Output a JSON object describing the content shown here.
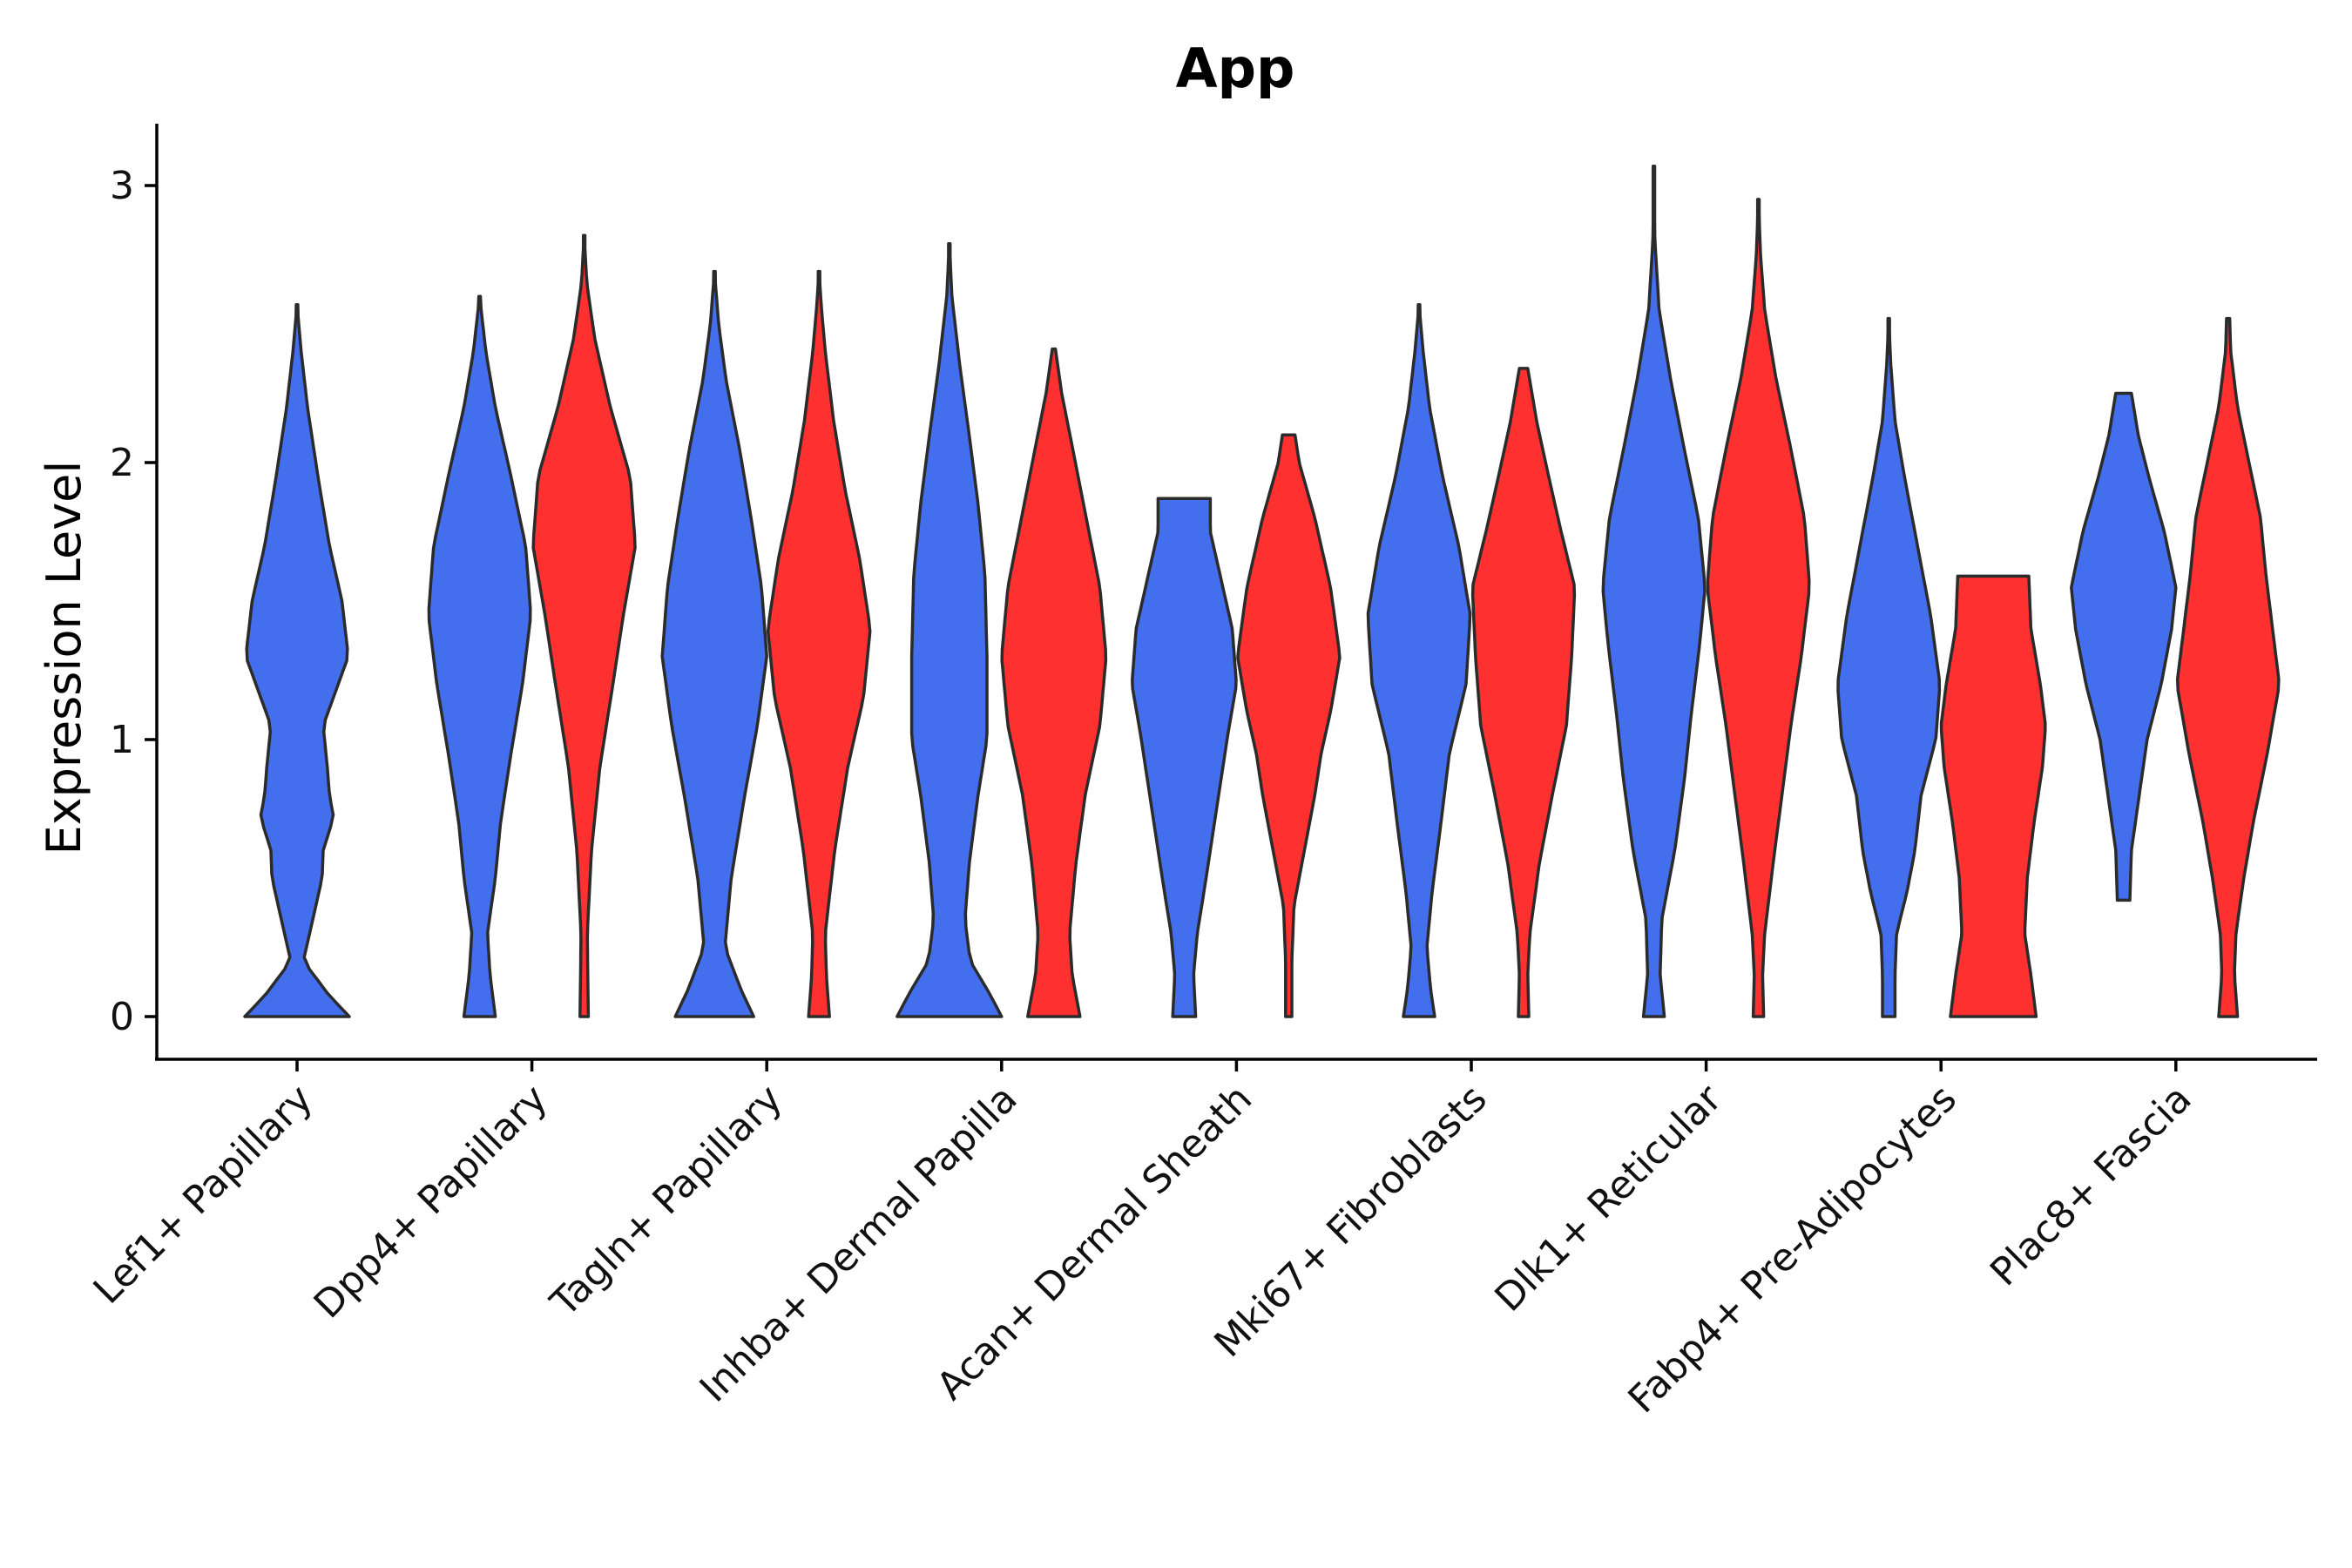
{
  "chart_data": {
    "type": "violin",
    "title": "App",
    "xlabel": "",
    "ylabel": "Expression Level",
    "ylim": [
      -0.15,
      3.2
    ],
    "yticks": [
      0,
      1,
      2,
      3
    ],
    "grid": false,
    "legend": "none",
    "colors": {
      "left": "#436EEE",
      "right": "#FF3030"
    },
    "categories": [
      "Lef1+ Papillary",
      "Dpp4+ Papillary",
      "Tagln+ Papillary",
      "Inhba+ Dermal Papilla",
      "Acan+ Dermal Sheath",
      "Mki67+ Fibroblasts",
      "Dlk1+ Reticular",
      "Fabp4+ Pre-Adipocytes",
      "Plac8+ Fascia"
    ],
    "violins": [
      {
        "category": 0,
        "color": "left",
        "ymin": 0,
        "ymax": 2.57,
        "profile": [
          [
            0,
            1.0
          ],
          [
            0.08,
            0.6
          ],
          [
            0.2,
            0.12
          ],
          [
            0.35,
            0.3
          ],
          [
            0.5,
            0.48
          ],
          [
            0.6,
            0.5
          ],
          [
            0.72,
            0.7
          ],
          [
            0.8,
            0.62
          ],
          [
            0.9,
            0.58
          ],
          [
            1.05,
            0.5
          ],
          [
            1.3,
            0.98
          ],
          [
            1.5,
            0.86
          ],
          [
            1.7,
            0.62
          ],
          [
            1.95,
            0.4
          ],
          [
            2.2,
            0.2
          ],
          [
            2.4,
            0.08
          ],
          [
            2.57,
            0.0
          ]
        ]
      },
      {
        "category": 1,
        "color": "left",
        "ymin": 0,
        "ymax": 2.6,
        "profile": [
          [
            0,
            0.3
          ],
          [
            0.15,
            0.2
          ],
          [
            0.3,
            0.15
          ],
          [
            0.5,
            0.3
          ],
          [
            0.7,
            0.4
          ],
          [
            0.95,
            0.6
          ],
          [
            1.2,
            0.82
          ],
          [
            1.45,
            0.98
          ],
          [
            1.7,
            0.88
          ],
          [
            1.95,
            0.6
          ],
          [
            2.2,
            0.3
          ],
          [
            2.4,
            0.12
          ],
          [
            2.6,
            0.0
          ]
        ]
      },
      {
        "category": 1,
        "color": "right",
        "ymin": 0,
        "ymax": 2.82,
        "profile": [
          [
            0,
            0.08
          ],
          [
            0.3,
            0.06
          ],
          [
            0.6,
            0.14
          ],
          [
            0.9,
            0.3
          ],
          [
            1.2,
            0.55
          ],
          [
            1.45,
            0.75
          ],
          [
            1.7,
            0.98
          ],
          [
            1.95,
            0.88
          ],
          [
            2.2,
            0.5
          ],
          [
            2.45,
            0.2
          ],
          [
            2.65,
            0.05
          ],
          [
            2.82,
            0.0
          ]
        ]
      },
      {
        "category": 2,
        "color": "left",
        "ymin": 0,
        "ymax": 2.69,
        "profile": [
          [
            0,
            0.75
          ],
          [
            0.1,
            0.5
          ],
          [
            0.25,
            0.2
          ],
          [
            0.5,
            0.32
          ],
          [
            0.8,
            0.58
          ],
          [
            1.05,
            0.82
          ],
          [
            1.3,
            1.0
          ],
          [
            1.55,
            0.9
          ],
          [
            1.8,
            0.7
          ],
          [
            2.05,
            0.48
          ],
          [
            2.3,
            0.22
          ],
          [
            2.5,
            0.08
          ],
          [
            2.69,
            0.0
          ]
        ]
      },
      {
        "category": 2,
        "color": "right",
        "ymin": 0,
        "ymax": 2.69,
        "profile": [
          [
            0,
            0.2
          ],
          [
            0.15,
            0.14
          ],
          [
            0.3,
            0.12
          ],
          [
            0.6,
            0.3
          ],
          [
            0.9,
            0.55
          ],
          [
            1.15,
            0.85
          ],
          [
            1.4,
            0.98
          ],
          [
            1.65,
            0.78
          ],
          [
            1.9,
            0.5
          ],
          [
            2.15,
            0.28
          ],
          [
            2.4,
            0.12
          ],
          [
            2.55,
            0.05
          ],
          [
            2.69,
            0.0
          ]
        ]
      },
      {
        "category": 3,
        "color": "left",
        "ymin": 0,
        "ymax": 2.79,
        "profile": [
          [
            0,
            1.0
          ],
          [
            0.08,
            0.78
          ],
          [
            0.2,
            0.4
          ],
          [
            0.35,
            0.3
          ],
          [
            0.55,
            0.38
          ],
          [
            0.8,
            0.55
          ],
          [
            1.0,
            0.72
          ],
          [
            1.3,
            0.72
          ],
          [
            1.6,
            0.68
          ],
          [
            1.85,
            0.55
          ],
          [
            2.1,
            0.38
          ],
          [
            2.35,
            0.2
          ],
          [
            2.6,
            0.05
          ],
          [
            2.79,
            0.0
          ]
        ]
      },
      {
        "category": 3,
        "color": "right",
        "ymin": 0,
        "ymax": 2.41,
        "profile": [
          [
            0,
            0.5
          ],
          [
            0.15,
            0.35
          ],
          [
            0.3,
            0.3
          ],
          [
            0.55,
            0.42
          ],
          [
            0.8,
            0.6
          ],
          [
            1.05,
            0.88
          ],
          [
            1.3,
            1.0
          ],
          [
            1.55,
            0.88
          ],
          [
            1.8,
            0.62
          ],
          [
            2.05,
            0.36
          ],
          [
            2.25,
            0.15
          ],
          [
            2.41,
            0.03
          ]
        ]
      },
      {
        "category": 4,
        "color": "left",
        "ymin": 0,
        "ymax": 1.87,
        "profile": [
          [
            0,
            0.22
          ],
          [
            0.15,
            0.18
          ],
          [
            0.3,
            0.25
          ],
          [
            0.5,
            0.42
          ],
          [
            0.75,
            0.62
          ],
          [
            1.0,
            0.82
          ],
          [
            1.2,
            1.0
          ],
          [
            1.4,
            0.92
          ],
          [
            1.6,
            0.68
          ],
          [
            1.75,
            0.5
          ],
          [
            1.87,
            0.5
          ]
        ]
      },
      {
        "category": 4,
        "color": "right",
        "ymin": 0,
        "ymax": 2.1,
        "profile": [
          [
            0,
            0.06
          ],
          [
            0.2,
            0.06
          ],
          [
            0.4,
            0.1
          ],
          [
            0.6,
            0.3
          ],
          [
            0.8,
            0.5
          ],
          [
            0.95,
            0.62
          ],
          [
            1.1,
            0.8
          ],
          [
            1.3,
            0.98
          ],
          [
            1.55,
            0.8
          ],
          [
            1.8,
            0.5
          ],
          [
            2.0,
            0.2
          ],
          [
            2.1,
            0.12
          ]
        ]
      },
      {
        "category": 5,
        "color": "left",
        "ymin": 0,
        "ymax": 2.57,
        "profile": [
          [
            0,
            0.3
          ],
          [
            0.1,
            0.22
          ],
          [
            0.25,
            0.15
          ],
          [
            0.45,
            0.25
          ],
          [
            0.7,
            0.42
          ],
          [
            0.95,
            0.58
          ],
          [
            1.2,
            0.9
          ],
          [
            1.45,
            0.98
          ],
          [
            1.7,
            0.76
          ],
          [
            1.95,
            0.45
          ],
          [
            2.2,
            0.2
          ],
          [
            2.4,
            0.08
          ],
          [
            2.57,
            0.0
          ]
        ]
      },
      {
        "category": 5,
        "color": "right",
        "ymin": 0,
        "ymax": 2.34,
        "profile": [
          [
            0,
            0.1
          ],
          [
            0.15,
            0.08
          ],
          [
            0.3,
            0.12
          ],
          [
            0.55,
            0.3
          ],
          [
            0.8,
            0.55
          ],
          [
            1.05,
            0.82
          ],
          [
            1.3,
            0.92
          ],
          [
            1.55,
            0.98
          ],
          [
            1.75,
            0.72
          ],
          [
            1.95,
            0.48
          ],
          [
            2.15,
            0.25
          ],
          [
            2.34,
            0.08
          ]
        ]
      },
      {
        "category": 6,
        "color": "left",
        "ymin": 0,
        "ymax": 3.07,
        "profile": [
          [
            0,
            0.2
          ],
          [
            0.15,
            0.12
          ],
          [
            0.35,
            0.15
          ],
          [
            0.6,
            0.4
          ],
          [
            0.85,
            0.58
          ],
          [
            1.1,
            0.72
          ],
          [
            1.35,
            0.88
          ],
          [
            1.55,
            0.98
          ],
          [
            1.8,
            0.85
          ],
          [
            2.05,
            0.58
          ],
          [
            2.3,
            0.32
          ],
          [
            2.55,
            0.1
          ],
          [
            2.8,
            0.02
          ],
          [
            3.07,
            0.0
          ]
        ]
      },
      {
        "category": 6,
        "color": "right",
        "ymin": 0,
        "ymax": 2.95,
        "profile": [
          [
            0,
            0.1
          ],
          [
            0.15,
            0.08
          ],
          [
            0.3,
            0.12
          ],
          [
            0.55,
            0.28
          ],
          [
            0.8,
            0.45
          ],
          [
            1.05,
            0.62
          ],
          [
            1.3,
            0.82
          ],
          [
            1.55,
            0.98
          ],
          [
            1.8,
            0.88
          ],
          [
            2.05,
            0.62
          ],
          [
            2.3,
            0.34
          ],
          [
            2.55,
            0.12
          ],
          [
            2.75,
            0.04
          ],
          [
            2.95,
            0.0
          ]
        ]
      },
      {
        "category": 7,
        "color": "left",
        "ymin": 0,
        "ymax": 2.52,
        "profile": [
          [
            0,
            0.12
          ],
          [
            0.15,
            0.12
          ],
          [
            0.3,
            0.15
          ],
          [
            0.45,
            0.35
          ],
          [
            0.6,
            0.5
          ],
          [
            0.8,
            0.62
          ],
          [
            1.0,
            0.9
          ],
          [
            1.2,
            0.98
          ],
          [
            1.45,
            0.8
          ],
          [
            1.7,
            0.55
          ],
          [
            1.95,
            0.3
          ],
          [
            2.15,
            0.12
          ],
          [
            2.35,
            0.04
          ],
          [
            2.52,
            0.0
          ]
        ]
      },
      {
        "category": 7,
        "color": "right",
        "ymin": 0,
        "ymax": 1.59,
        "profile": [
          [
            0,
            0.82
          ],
          [
            0.15,
            0.72
          ],
          [
            0.3,
            0.6
          ],
          [
            0.5,
            0.65
          ],
          [
            0.7,
            0.78
          ],
          [
            0.9,
            0.94
          ],
          [
            1.05,
            1.0
          ],
          [
            1.2,
            0.9
          ],
          [
            1.4,
            0.72
          ],
          [
            1.59,
            0.68
          ]
        ]
      },
      {
        "category": 8,
        "color": "left",
        "ymin": 0.42,
        "ymax": 2.25,
        "profile": [
          [
            0.42,
            0.12
          ],
          [
            0.6,
            0.15
          ],
          [
            0.8,
            0.3
          ],
          [
            1.0,
            0.45
          ],
          [
            1.2,
            0.72
          ],
          [
            1.4,
            0.92
          ],
          [
            1.55,
            1.0
          ],
          [
            1.75,
            0.78
          ],
          [
            1.95,
            0.48
          ],
          [
            2.1,
            0.28
          ],
          [
            2.25,
            0.15
          ]
        ]
      },
      {
        "category": 8,
        "color": "right",
        "ymin": 0,
        "ymax": 2.52,
        "profile": [
          [
            0,
            0.18
          ],
          [
            0.15,
            0.12
          ],
          [
            0.3,
            0.15
          ],
          [
            0.5,
            0.3
          ],
          [
            0.7,
            0.48
          ],
          [
            0.95,
            0.75
          ],
          [
            1.2,
            0.98
          ],
          [
            1.4,
            0.85
          ],
          [
            1.6,
            0.72
          ],
          [
            1.8,
            0.62
          ],
          [
            2.0,
            0.4
          ],
          [
            2.2,
            0.18
          ],
          [
            2.4,
            0.05
          ],
          [
            2.52,
            0.03
          ]
        ]
      }
    ]
  }
}
